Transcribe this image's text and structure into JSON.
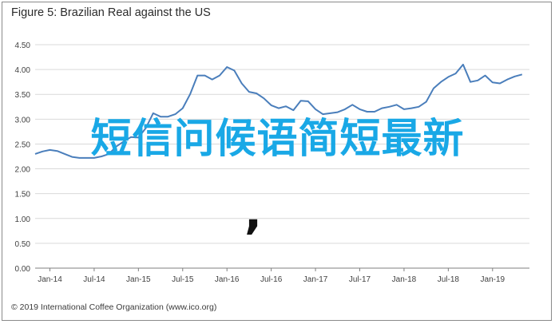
{
  "figure": {
    "title": "Figure 5: Brazilian Real against the US",
    "footer": "© 2019 International Coffee Organization (www.ico.org)"
  },
  "overlay": {
    "text": "短信问候语简短最新",
    "punctuation": ","
  },
  "colors": {
    "line": "#4a7ebb",
    "overlay_text": "#19a8e6",
    "grid": "#d9d9d9",
    "axis": "#7f7f7f"
  },
  "chart_data": {
    "type": "line",
    "title": "Brazilian Real against the US",
    "xlabel": "",
    "ylabel": "",
    "ylim": [
      0,
      4.5
    ],
    "yticks": [
      "0.00",
      "0.50",
      "1.00",
      "1.50",
      "2.00",
      "2.50",
      "3.00",
      "3.50",
      "4.00",
      "4.50"
    ],
    "xticks": [
      "Jan-14",
      "Jul-14",
      "Jan-15",
      "Jul-15",
      "Jan-16",
      "Jul-16",
      "Jan-17",
      "Jul-17",
      "Jan-18",
      "Jul-18",
      "Jan-19"
    ],
    "grid": true,
    "series": [
      {
        "name": "",
        "x": [
          "2013-11",
          "2013-12",
          "2014-01",
          "2014-02",
          "2014-03",
          "2014-04",
          "2014-05",
          "2014-06",
          "2014-07",
          "2014-08",
          "2014-09",
          "2014-10",
          "2014-11",
          "2014-12",
          "2015-01",
          "2015-02",
          "2015-03",
          "2015-04",
          "2015-05",
          "2015-06",
          "2015-07",
          "2015-08",
          "2015-09",
          "2015-10",
          "2015-11",
          "2015-12",
          "2016-01",
          "2016-02",
          "2016-03",
          "2016-04",
          "2016-05",
          "2016-06",
          "2016-07",
          "2016-08",
          "2016-09",
          "2016-10",
          "2016-11",
          "2016-12",
          "2017-01",
          "2017-02",
          "2017-03",
          "2017-04",
          "2017-05",
          "2017-06",
          "2017-07",
          "2017-08",
          "2017-09",
          "2017-10",
          "2017-11",
          "2017-12",
          "2018-01",
          "2018-02",
          "2018-03",
          "2018-04",
          "2018-05",
          "2018-06",
          "2018-07",
          "2018-08",
          "2018-09",
          "2018-10",
          "2018-11",
          "2018-12",
          "2019-01",
          "2019-02",
          "2019-03",
          "2019-04",
          "2019-05"
        ],
        "values": [
          2.3,
          2.35,
          2.38,
          2.36,
          2.3,
          2.24,
          2.22,
          2.22,
          2.22,
          2.25,
          2.3,
          2.45,
          2.55,
          2.64,
          2.63,
          2.82,
          3.12,
          3.05,
          3.05,
          3.1,
          3.22,
          3.5,
          3.88,
          3.88,
          3.8,
          3.88,
          4.05,
          3.98,
          3.72,
          3.55,
          3.52,
          3.42,
          3.28,
          3.22,
          3.26,
          3.18,
          3.37,
          3.36,
          3.2,
          3.1,
          3.12,
          3.14,
          3.2,
          3.29,
          3.2,
          3.15,
          3.15,
          3.22,
          3.25,
          3.29,
          3.2,
          3.22,
          3.25,
          3.35,
          3.62,
          3.75,
          3.85,
          3.92,
          4.1,
          3.75,
          3.78,
          3.88,
          3.74,
          3.72,
          3.8,
          3.86,
          3.9
        ]
      }
    ]
  }
}
